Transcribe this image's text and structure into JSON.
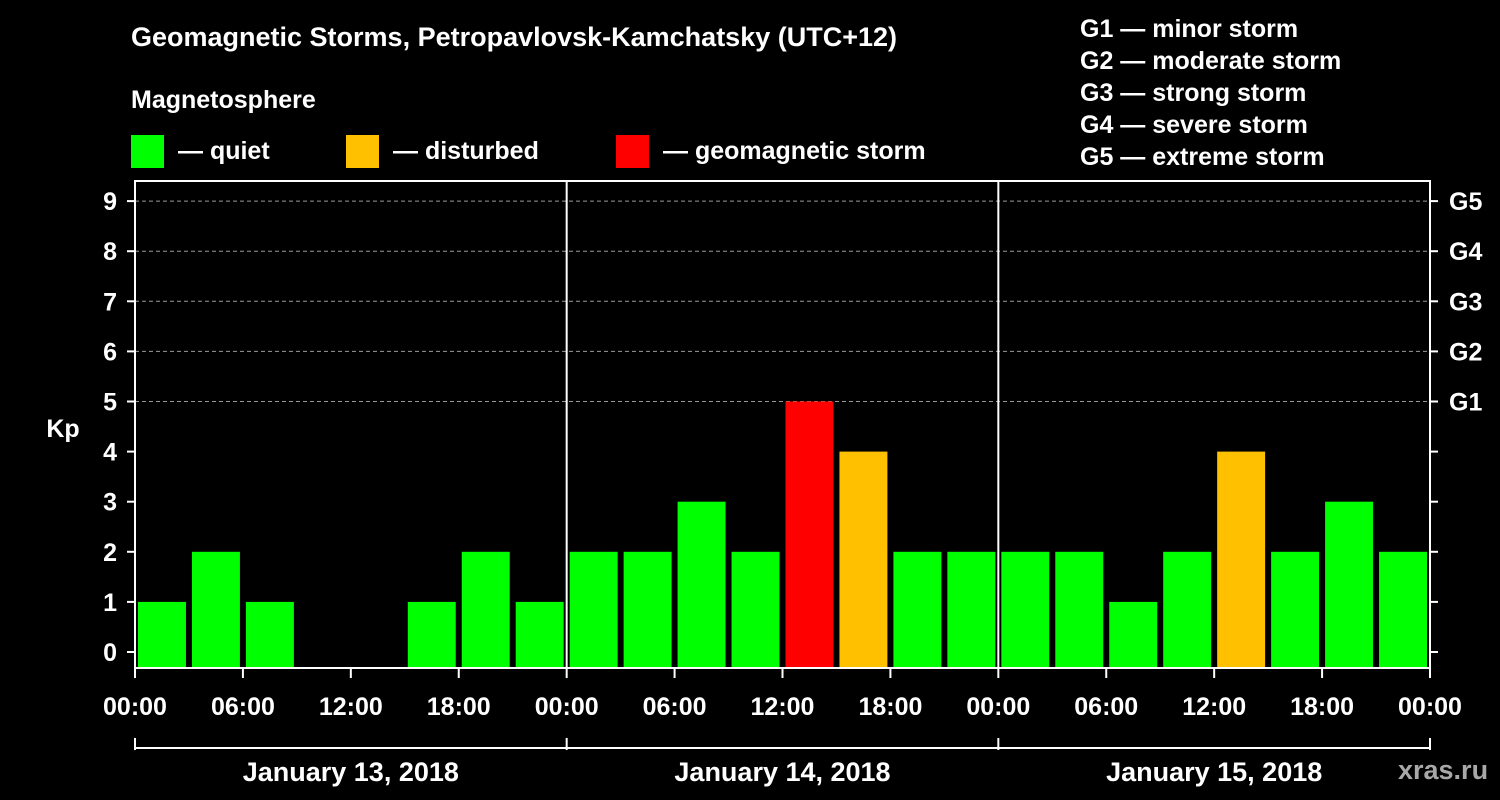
{
  "title": "Geomagnetic Storms, Petropavlovsk-Kamchatsky (UTC+12)",
  "magnetosphere_label": "Magnetosphere",
  "legend": [
    {
      "label": "— quiet",
      "color": "#00ff00"
    },
    {
      "label": "— disturbed",
      "color": "#ffc000"
    },
    {
      "label": "— geomagnetic storm",
      "color": "#ff0000"
    }
  ],
  "storm_levels": [
    "G1 — minor storm",
    "G2 — moderate storm",
    "G3 — strong storm",
    "G4 — severe storm",
    "G5 — extreme storm"
  ],
  "watermark": "xras.ru",
  "chart_data": {
    "type": "bar",
    "ylabel": "Kp",
    "ylim": [
      0,
      9
    ],
    "y_ticks": [
      "0",
      "1",
      "2",
      "3",
      "4",
      "5",
      "6",
      "7",
      "8",
      "9"
    ],
    "right_axis_labels": [
      {
        "kp": 5,
        "label": "G1"
      },
      {
        "kp": 6,
        "label": "G2"
      },
      {
        "kp": 7,
        "label": "G3"
      },
      {
        "kp": 8,
        "label": "G4"
      },
      {
        "kp": 9,
        "label": "G5"
      }
    ],
    "x_tick_labels": [
      "00:00",
      "06:00",
      "12:00",
      "18:00",
      "00:00",
      "06:00",
      "12:00",
      "18:00",
      "00:00",
      "06:00",
      "12:00",
      "18:00",
      "00:00"
    ],
    "days": [
      "January 13, 2018",
      "January 14, 2018",
      "January 15, 2018"
    ],
    "interval_hours": 3,
    "values": [
      1,
      2,
      1,
      0,
      0,
      1,
      2,
      1,
      2,
      2,
      3,
      2,
      5,
      4,
      2,
      2,
      2,
      2,
      1,
      2,
      4,
      2,
      3,
      2
    ],
    "colors": {
      "quiet": "#00ff00",
      "disturbed": "#ffc000",
      "storm": "#ff0000"
    },
    "grid": "dashed horizontal at each Kp level"
  }
}
